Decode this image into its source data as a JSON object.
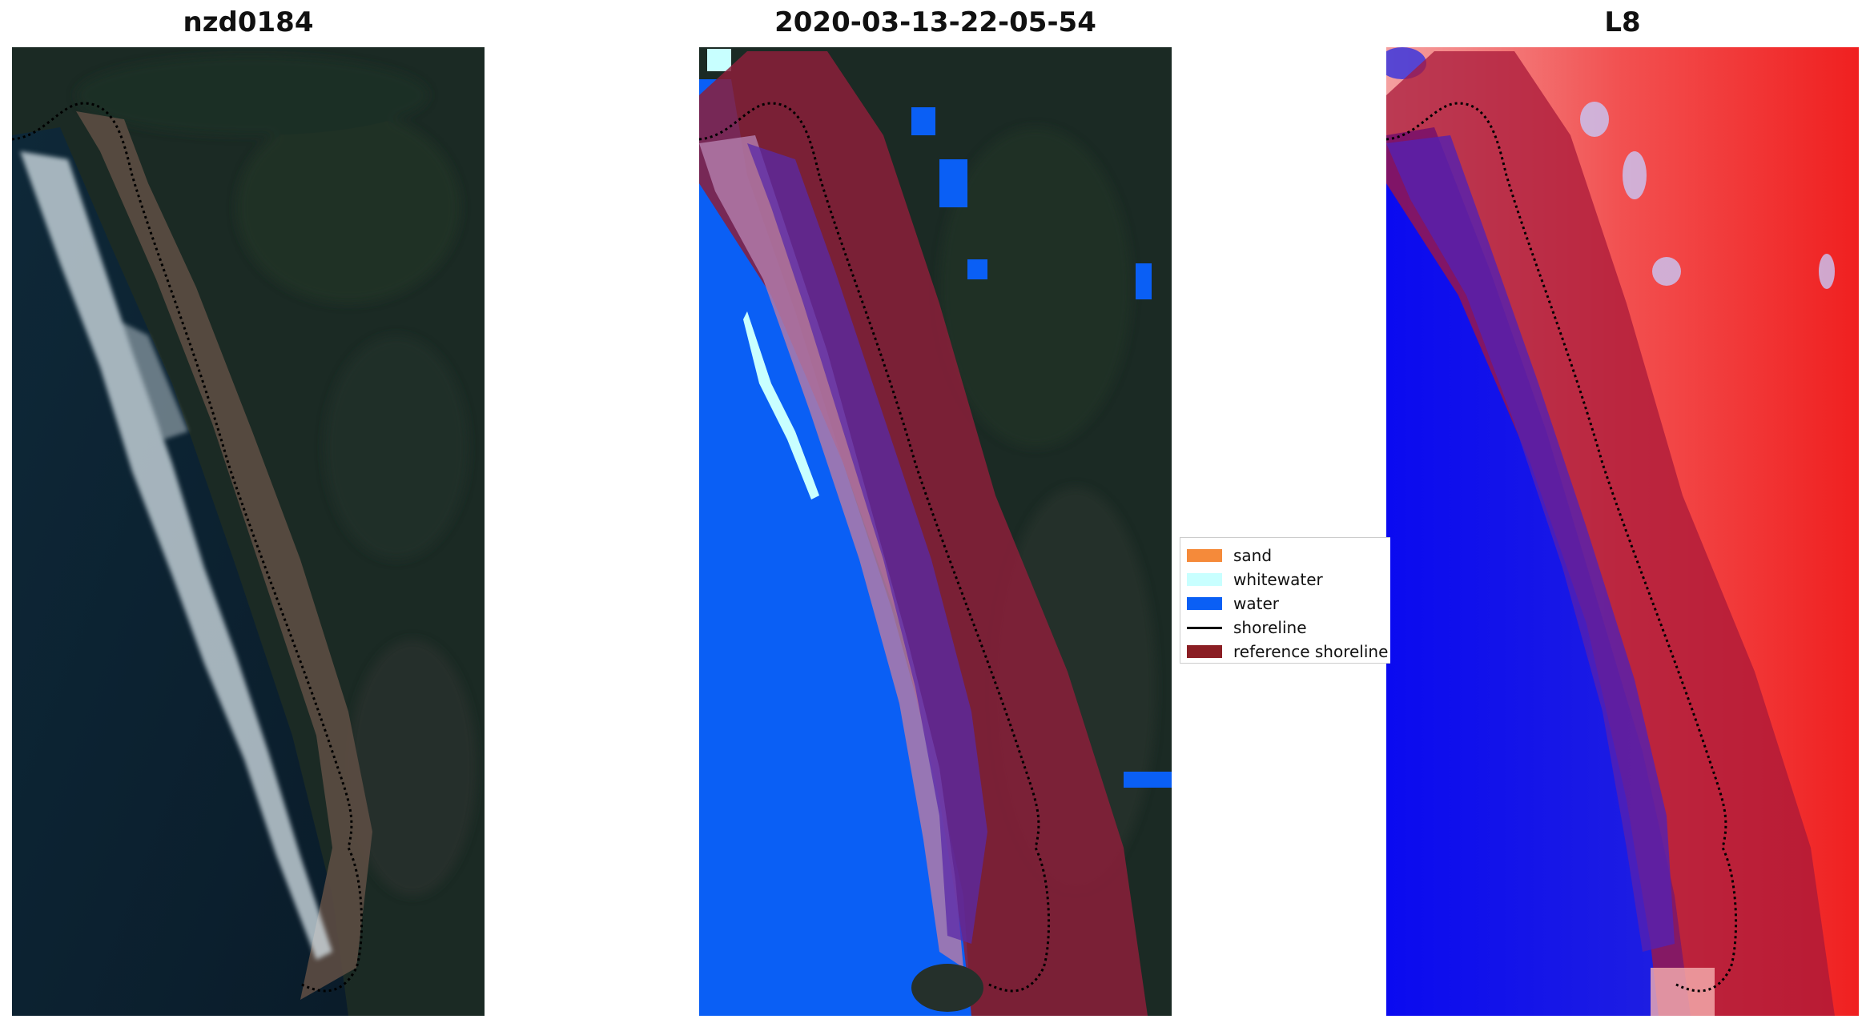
{
  "panels": [
    {
      "title": "nzd0184",
      "type": "satellite-rgb"
    },
    {
      "title": "2020-03-13-22-05-54",
      "type": "classified-overlay"
    },
    {
      "title": "L8",
      "type": "index-map"
    }
  ],
  "legend": {
    "items": [
      {
        "label": "sand",
        "color": "#f58a3a",
        "kind": "patch"
      },
      {
        "label": "whitewater",
        "color": "#c8ffff",
        "kind": "patch"
      },
      {
        "label": "water",
        "color": "#0a5ff5",
        "kind": "patch"
      },
      {
        "label": "shoreline",
        "color": "#000000",
        "kind": "line"
      },
      {
        "label": "reference shoreline",
        "color": "#8b1e24",
        "kind": "patch"
      }
    ]
  },
  "colors": {
    "ocean_dark": "#0c2233",
    "land_dark": "#1a2a22",
    "beach_brown": "#5a4a3f",
    "water_blue": "#0a5ff5",
    "buffer_red": "#8b1e3a",
    "sand_mauve": "#b07aa8",
    "index_red": "#f03030",
    "index_blue": "#1010ee"
  }
}
